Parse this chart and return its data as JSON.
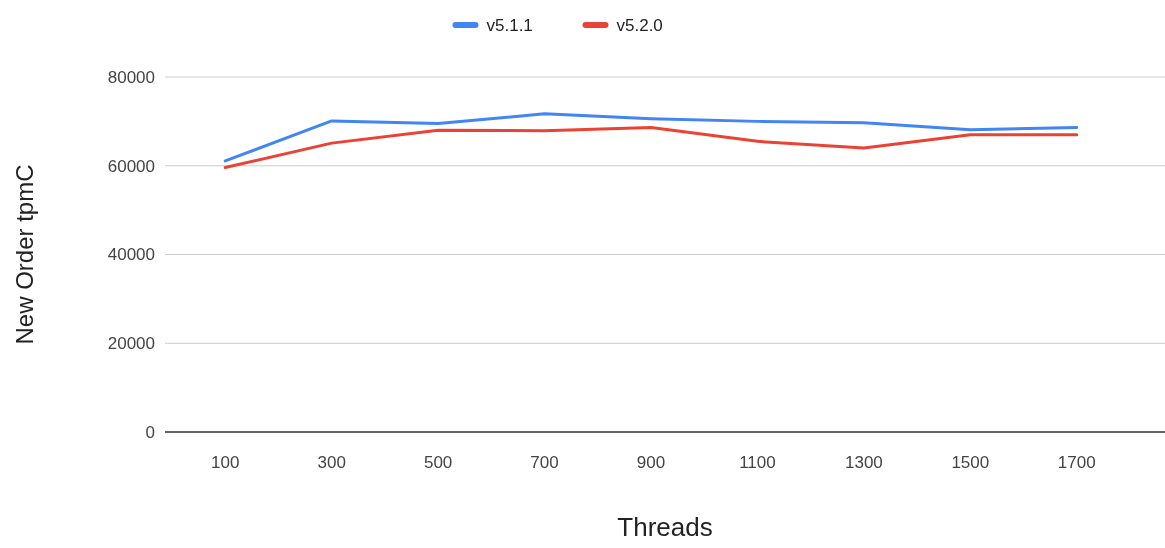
{
  "chart_data": {
    "type": "line",
    "xlabel": "Threads",
    "ylabel": "New Order tpmC",
    "categories": [
      "100",
      "300",
      "500",
      "700",
      "900",
      "1100",
      "1300",
      "1500",
      "1700"
    ],
    "series": [
      {
        "name": "v5.1.1",
        "color": "#4285f4",
        "values": [
          61100,
          70100,
          69500,
          71700,
          70600,
          70000,
          69700,
          68100,
          68600
        ]
      },
      {
        "name": "v5.2.0",
        "color": "#ea4335",
        "values": [
          59600,
          65100,
          68000,
          67900,
          68600,
          65500,
          64000,
          67000,
          67000
        ]
      }
    ],
    "ylim": [
      0,
      80000
    ],
    "yticks": [
      0,
      20000,
      40000,
      60000,
      80000
    ],
    "grid": "y",
    "legend": "top",
    "marker": "none",
    "line_style": "solid"
  }
}
